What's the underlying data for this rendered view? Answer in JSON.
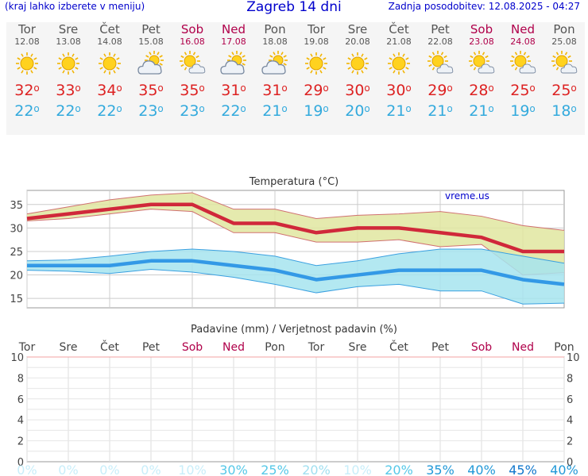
{
  "header": {
    "left": "(kraj lahko izberete v meniju)",
    "title": "Zagreb 14 dni",
    "updated": "Zadnja posodobitev: 12.08.2025 - 04:27"
  },
  "days": [
    {
      "name": "Tor",
      "date": "12.08",
      "weekend": false,
      "icon": "sun-icon",
      "max": "32",
      "min": "22"
    },
    {
      "name": "Sre",
      "date": "13.08",
      "weekend": false,
      "icon": "sun-icon",
      "max": "33",
      "min": "22"
    },
    {
      "name": "Čet",
      "date": "14.08",
      "weekend": false,
      "icon": "sun-icon",
      "max": "34",
      "min": "22"
    },
    {
      "name": "Pet",
      "date": "15.08",
      "weekend": false,
      "icon": "cloud-sun-icon",
      "max": "35",
      "min": "23"
    },
    {
      "name": "Sob",
      "date": "16.08",
      "weekend": true,
      "icon": "sun-cloud-icon",
      "max": "35",
      "min": "23"
    },
    {
      "name": "Ned",
      "date": "17.08",
      "weekend": true,
      "icon": "cloud-sun-icon",
      "max": "31",
      "min": "22"
    },
    {
      "name": "Pon",
      "date": "18.08",
      "weekend": false,
      "icon": "cloud-sun-icon",
      "max": "31",
      "min": "21"
    },
    {
      "name": "Tor",
      "date": "19.08",
      "weekend": false,
      "icon": "sun-icon",
      "max": "29",
      "min": "19"
    },
    {
      "name": "Sre",
      "date": "20.08",
      "weekend": false,
      "icon": "sun-icon",
      "max": "30",
      "min": "20"
    },
    {
      "name": "Čet",
      "date": "21.08",
      "weekend": false,
      "icon": "sun-icon",
      "max": "30",
      "min": "21"
    },
    {
      "name": "Pet",
      "date": "22.08",
      "weekend": false,
      "icon": "sun-cloud-icon",
      "max": "29",
      "min": "21"
    },
    {
      "name": "Sob",
      "date": "23.08",
      "weekend": true,
      "icon": "sun-cloud-icon",
      "max": "28",
      "min": "21"
    },
    {
      "name": "Ned",
      "date": "24.08",
      "weekend": true,
      "icon": "sun-cloud-icon",
      "max": "25",
      "min": "19"
    },
    {
      "name": "Pon",
      "date": "25.08",
      "weekend": false,
      "icon": "sun-cloud-icon",
      "max": "25",
      "min": "18"
    }
  ],
  "colors": {
    "max": "#dd2222",
    "min": "#33aadd",
    "weekend": "#b0004a",
    "maxLine": "#d0283a",
    "minLine": "#3399e6",
    "maxBand": "#e0e6a0",
    "minBand": "#a6e4ee"
  },
  "chart_data": [
    {
      "type": "line",
      "title": "Temperatura (°C)",
      "watermark": "vreme.us",
      "x": [
        "12.08",
        "13.08",
        "14.08",
        "15.08",
        "16.08",
        "17.08",
        "18.08",
        "19.08",
        "20.08",
        "21.08",
        "22.08",
        "23.08",
        "24.08",
        "25.08"
      ],
      "ylim": [
        13,
        38
      ],
      "yticks": [
        "15",
        "20",
        "25",
        "30",
        "35"
      ],
      "grid": true,
      "series": [
        {
          "values": [
            32,
            33,
            34,
            35,
            35,
            31,
            31,
            29,
            30,
            30,
            29,
            28,
            25,
            25
          ],
          "upper": [
            33,
            34.5,
            36,
            37,
            37.5,
            34,
            34,
            32,
            32.7,
            33,
            33.5,
            32.5,
            30.5,
            29.5
          ],
          "lower": [
            31.5,
            32,
            33,
            34,
            33.5,
            29,
            29,
            27,
            27,
            27.5,
            26,
            26.5,
            20,
            20.5
          ]
        },
        {
          "values": [
            22,
            22,
            22,
            23,
            23,
            22,
            21,
            19,
            20,
            21,
            21,
            21,
            19,
            18
          ],
          "upper": [
            23,
            23.2,
            24,
            25,
            25.5,
            25,
            24,
            22,
            23,
            24.5,
            25.5,
            25.5,
            24,
            22.5
          ],
          "lower": [
            21,
            20.8,
            20.3,
            21.2,
            20.6,
            19.5,
            18,
            16.2,
            17.5,
            18,
            16.6,
            16.6,
            13.8,
            14
          ]
        }
      ]
    },
    {
      "type": "bar",
      "title": "Padavine (mm) / Verjetnost padavin (%)",
      "categories": [
        "Tor",
        "Sre",
        "Čet",
        "Pet",
        "Sob",
        "Ned",
        "Pon",
        "Tor",
        "Sre",
        "Čet",
        "Pet",
        "Sob",
        "Ned",
        "Pon"
      ],
      "values": [
        0,
        0,
        0,
        0,
        0,
        0,
        0,
        0,
        0,
        0,
        0,
        0,
        0,
        0
      ],
      "ylim": [
        0,
        10
      ],
      "yticks": [
        "0",
        "2",
        "4",
        "6",
        "8",
        "10"
      ],
      "probability": [
        "0%",
        "0%",
        "0%",
        "0%",
        "10%",
        "30%",
        "25%",
        "20%",
        "10%",
        "20%",
        "35%",
        "40%",
        "45%",
        "40%"
      ],
      "probability_colors": [
        "#c8eefa",
        "#c8eefa",
        "#c8eefa",
        "#c8eefa",
        "#c8eefa",
        "#55c8e8",
        "#55c8e8",
        "#a0dff0",
        "#c8eefa",
        "#55c8e8",
        "#2299d8",
        "#2299d8",
        "#1177cc",
        "#2299d8"
      ]
    }
  ]
}
